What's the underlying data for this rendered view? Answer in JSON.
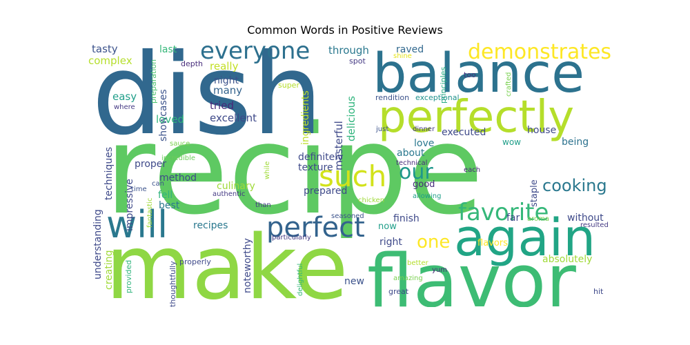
{
  "chart_data": {
    "type": "wordcloud",
    "title": "Common Words in Positive Reviews",
    "words": [
      {
        "text": "recipe",
        "color": "#5ec962"
      },
      {
        "text": "dish",
        "color": "#31688e"
      },
      {
        "text": "make",
        "color": "#8fd744"
      },
      {
        "text": "flavor",
        "color": "#3dbc74"
      },
      {
        "text": "balance",
        "color": "#2c728e"
      },
      {
        "text": "perfectly",
        "color": "#b5de2b"
      },
      {
        "text": "again",
        "color": "#21a585"
      },
      {
        "text": "will",
        "color": "#2a788e"
      },
      {
        "text": "perfect",
        "color": "#33638d"
      },
      {
        "text": "such",
        "color": "#d2e21b"
      },
      {
        "text": "everyone",
        "color": "#2d708e"
      },
      {
        "text": "demonstrates",
        "color": "#fde725"
      },
      {
        "text": "favorite",
        "color": "#35b779"
      },
      {
        "text": "cooking",
        "color": "#2a788e"
      },
      {
        "text": "our",
        "color": "#1f978b"
      },
      {
        "text": "one",
        "color": "#fde725"
      },
      {
        "text": "tasty",
        "color": "#3b528b"
      },
      {
        "text": "last",
        "color": "#35b779"
      },
      {
        "text": "complex",
        "color": "#b5de2b"
      },
      {
        "text": "through",
        "color": "#2a788e"
      },
      {
        "text": "raved",
        "color": "#31688e"
      },
      {
        "text": "shine",
        "color": "#e5e419"
      },
      {
        "text": "spot",
        "color": "#443983"
      },
      {
        "text": "principles",
        "color": "#25ab82"
      },
      {
        "text": "too",
        "color": "#46337e"
      },
      {
        "text": "crafted",
        "color": "#7ad151"
      },
      {
        "text": "preparation",
        "color": "#4ac16d"
      },
      {
        "text": "depth",
        "color": "#472d7b"
      },
      {
        "text": "super",
        "color": "#b5de2b"
      },
      {
        "text": "really",
        "color": "#c2df23"
      },
      {
        "text": "night",
        "color": "#3b528b"
      },
      {
        "text": "many",
        "color": "#33638d"
      },
      {
        "text": "ingredients",
        "color": "#bddf26"
      },
      {
        "text": "delicious",
        "color": "#2fb47c"
      },
      {
        "text": "masterful",
        "color": "#3e4989"
      },
      {
        "text": "rendition",
        "color": "#3b528b"
      },
      {
        "text": "exceptional",
        "color": "#20928c"
      },
      {
        "text": "easy",
        "color": "#1f9e89"
      },
      {
        "text": "showcases",
        "color": "#3b528b"
      },
      {
        "text": "where",
        "color": "#443983"
      },
      {
        "text": "tried",
        "color": "#482878"
      },
      {
        "text": "excellent",
        "color": "#3e4989"
      },
      {
        "text": "loved",
        "color": "#2fb47c"
      },
      {
        "text": "just",
        "color": "#3b528b"
      },
      {
        "text": "dinner",
        "color": "#443983"
      },
      {
        "text": "executed",
        "color": "#3e4989"
      },
      {
        "text": "house",
        "color": "#3e4989"
      },
      {
        "text": "being",
        "color": "#2c728e"
      },
      {
        "text": "techniques",
        "color": "#3e4989"
      },
      {
        "text": "sauce",
        "color": "#7ad151"
      },
      {
        "text": "incredible",
        "color": "#6ccd5a"
      },
      {
        "text": "definitely",
        "color": "#3e4989"
      },
      {
        "text": "love",
        "color": "#2a788e"
      },
      {
        "text": "about",
        "color": "#2a788e"
      },
      {
        "text": "wow",
        "color": "#1f9e89"
      },
      {
        "text": "technical",
        "color": "#472d7b"
      },
      {
        "text": "while",
        "color": "#a0da39"
      },
      {
        "text": "proper",
        "color": "#3e4989"
      },
      {
        "text": "texture",
        "color": "#3e4989"
      },
      {
        "text": "each",
        "color": "#482878"
      },
      {
        "text": "method",
        "color": "#3e4989"
      },
      {
        "text": "impressive",
        "color": "#3e4989"
      },
      {
        "text": "understanding",
        "color": "#3e4989"
      },
      {
        "text": "time",
        "color": "#3b528b"
      },
      {
        "text": "can",
        "color": "#3b528b"
      },
      {
        "text": "fell",
        "color": "#2fb47c"
      },
      {
        "text": "fantastic",
        "color": "#a0da39"
      },
      {
        "text": "best",
        "color": "#2a788e"
      },
      {
        "text": "culinary",
        "color": "#a0da39"
      },
      {
        "text": "prepared",
        "color": "#3e4989"
      },
      {
        "text": "good",
        "color": "#472d7b"
      },
      {
        "text": "staple",
        "color": "#3e4989"
      },
      {
        "text": "authentic",
        "color": "#443983"
      },
      {
        "text": "chicken",
        "color": "#a0da39"
      },
      {
        "text": "allowing",
        "color": "#1f9e89"
      },
      {
        "text": "resulted",
        "color": "#443983"
      },
      {
        "text": "than",
        "color": "#443983"
      },
      {
        "text": "finish",
        "color": "#3e4989"
      },
      {
        "text": "far",
        "color": "#3e4989"
      },
      {
        "text": "aroma",
        "color": "#7ad151"
      },
      {
        "text": "without",
        "color": "#3e4989"
      },
      {
        "text": "recipes",
        "color": "#2a788e"
      },
      {
        "text": "seasoned",
        "color": "#3b528b"
      },
      {
        "text": "now",
        "color": "#1f9e89"
      },
      {
        "text": "creating",
        "color": "#a0da39"
      },
      {
        "text": "noteworthy",
        "color": "#3e4989"
      },
      {
        "text": "particularly",
        "color": "#443983"
      },
      {
        "text": "right",
        "color": "#3e4989"
      },
      {
        "text": "flavors",
        "color": "#fde725"
      },
      {
        "text": "absolutely",
        "color": "#a0da39"
      },
      {
        "text": "properly",
        "color": "#3e4989"
      },
      {
        "text": "better",
        "color": "#b5de2b"
      },
      {
        "text": "yum",
        "color": "#482878"
      },
      {
        "text": "thoughtfully",
        "color": "#3e4989"
      },
      {
        "text": "provided",
        "color": "#2fb47c"
      },
      {
        "text": "delightful",
        "color": "#35b779"
      },
      {
        "text": "new",
        "color": "#3b528b"
      },
      {
        "text": "amazing",
        "color": "#7ad151"
      },
      {
        "text": "great",
        "color": "#3e4989"
      },
      {
        "text": "hit",
        "color": "#3e4989"
      }
    ]
  }
}
